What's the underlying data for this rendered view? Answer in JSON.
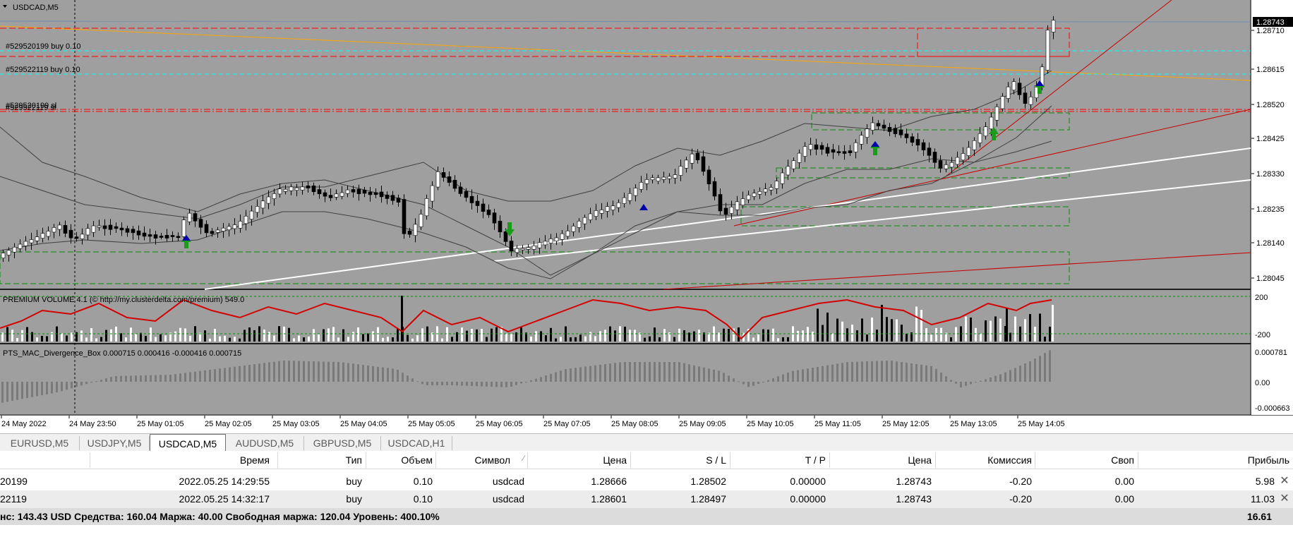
{
  "chart": {
    "symbol_title": "USDCAD,M5",
    "price_labels": [
      "1.28710",
      "1.28615",
      "1.28520",
      "1.28425",
      "1.28330",
      "1.28235",
      "1.28140",
      "1.28045"
    ],
    "current_price": "1.28743",
    "time_labels": [
      "24 May 2022",
      "24 May 23:50",
      "25 May 01:05",
      "25 May 02:05",
      "25 May 03:05",
      "25 May 04:05",
      "25 May 05:05",
      "25 May 06:05",
      "25 May 07:05",
      "25 May 08:05",
      "25 May 09:05",
      "25 May 10:05",
      "25 May 11:05",
      "25 May 12:05",
      "25 May 13:05",
      "25 May 14:05"
    ],
    "order_labels": [
      "#529520199 buy 0.10",
      "#529522119 buy 0.10",
      "#529520199 sl",
      "#529522119 sl"
    ],
    "indicator1": {
      "title": "PREMIUM VOLUME 4.1 (© http://my.clusterdelta.com/premium) 549.0",
      "scale_top": "200",
      "scale_bottom": "-200"
    },
    "indicator2": {
      "title": "PTS_MAC_Divergence_Box 0.000715 0.000416 -0.000416 0.000715",
      "scale_top": "0.000781",
      "scale_mid": "0.00",
      "scale_bottom": "-0.000663"
    },
    "colors": {
      "background": "#9f9f9f",
      "bull": "#ffffff",
      "bear": "#000000",
      "sl_line": "#ff0000",
      "order_line": "#00ffff",
      "orange_line": "#ffa500",
      "volume_line": "#d40000"
    }
  },
  "tabs": [
    "EURUSD,M5",
    "USDJPY,M5",
    "USDCAD,M5",
    "AUDUSD,M5",
    "GBPUSD,M5",
    "USDCAD,H1"
  ],
  "active_tab": "USDCAD,M5",
  "terminal": {
    "columns": [
      "Время",
      "Тип",
      "Объем",
      "Символ",
      "Цена",
      "S / L",
      "T / P",
      "Цена",
      "Комиссия",
      "Своп",
      "Прибыль"
    ],
    "rows": [
      {
        "order": "20199",
        "time": "2022.05.25 14:29:55",
        "type": "buy",
        "volume": "0.10",
        "symbol": "usdcad",
        "price": "1.28666",
        "sl": "1.28502",
        "tp": "0.00000",
        "cur_price": "1.28743",
        "commission": "-0.20",
        "swap": "0.00",
        "profit": "5.98"
      },
      {
        "order": "22119",
        "time": "2022.05.25 14:32:17",
        "type": "buy",
        "volume": "0.10",
        "symbol": "usdcad",
        "price": "1.28601",
        "sl": "1.28497",
        "tp": "0.00000",
        "cur_price": "1.28743",
        "commission": "-0.20",
        "swap": "0.00",
        "profit": "11.03"
      }
    ],
    "summary": "нс: 143.43 USD  Средства: 160.04  Маржа: 40.00  Свободная маржа: 120.04  Уровень: 400.10%",
    "total_profit": "16.61"
  }
}
